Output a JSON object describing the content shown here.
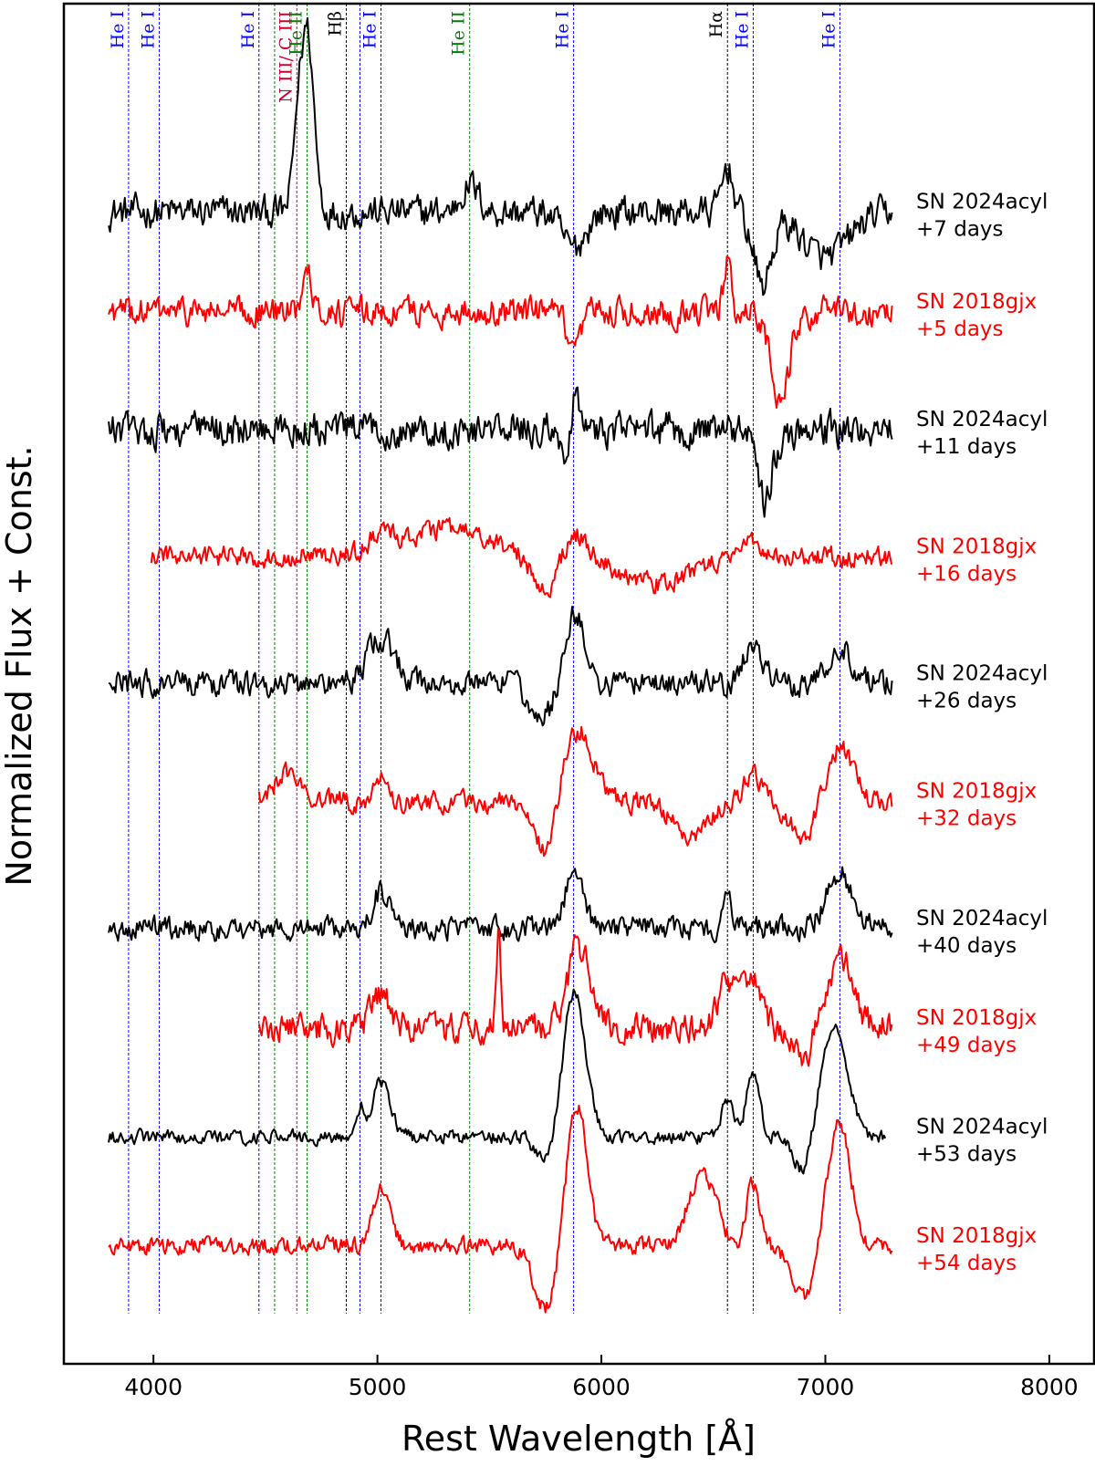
{
  "chart_data": {
    "type": "line",
    "xlabel": "Rest Wavelength [Å]",
    "ylabel": "Normalized Flux + Const.",
    "xlim": [
      3600,
      8200
    ],
    "xticks": [
      4000,
      5000,
      6000,
      7000,
      8000
    ],
    "xtick_labels": [
      "4000",
      "5000",
      "6000",
      "7000",
      "8000"
    ],
    "line_ids": [
      {
        "label": "He I",
        "wavelength": 3889,
        "color": "#0000ff"
      },
      {
        "label": "He I",
        "wavelength": 4026,
        "color": "#0000ff"
      },
      {
        "label": "He I",
        "wavelength": 4471,
        "color": "#0000ff"
      },
      {
        "label": "N III/ C III",
        "wavelength": 4640,
        "color": "#cc0033"
      },
      {
        "label": "He II",
        "wavelength": 4686,
        "color": "#008000"
      },
      {
        "label": "Hβ",
        "wavelength": 4861,
        "color": "#000000"
      },
      {
        "label": "He I",
        "wavelength": 5016,
        "color": "#0000ff"
      },
      {
        "label": "He II",
        "wavelength": 5412,
        "color": "#008000"
      },
      {
        "label": "He I",
        "wavelength": 5876,
        "color": "#0000ff"
      },
      {
        "label": "Hα",
        "wavelength": 6563,
        "color": "#000000"
      },
      {
        "label": "He I",
        "wavelength": 6678,
        "color": "#0000ff"
      },
      {
        "label": "He I",
        "wavelength": 7065,
        "color": "#0000ff"
      }
    ],
    "extra_lines": [
      {
        "wavelength": 4541,
        "color": "#008000",
        "label": ""
      },
      {
        "wavelength": 4922,
        "color": "#0000ff",
        "label": ""
      }
    ],
    "series": [
      {
        "name": "SN 2024acyl",
        "epoch": "+7 days",
        "color": "#000000",
        "range": [
          3800,
          7300
        ],
        "offset": 1.0,
        "noise": 0.028,
        "features": [
          [
            4686,
            0.2,
            30
          ],
          [
            4640,
            0.06,
            20
          ],
          [
            5412,
            0.03,
            40
          ],
          [
            5876,
            -0.04,
            50
          ],
          [
            6563,
            0.05,
            25
          ],
          [
            6720,
            -0.08,
            40
          ],
          [
            7000,
            -0.05,
            100
          ]
        ]
      },
      {
        "name": "SN 2018gjx",
        "epoch": "+5 days",
        "color": "#ff0000",
        "range": [
          3800,
          7300
        ],
        "offset": 0.89,
        "noise": 0.025,
        "features": [
          [
            4686,
            0.06,
            20
          ],
          [
            5876,
            -0.05,
            30
          ],
          [
            6563,
            0.06,
            15
          ],
          [
            6800,
            -0.1,
            40
          ]
        ]
      },
      {
        "name": "SN 2024acyl",
        "epoch": "+11 days",
        "color": "#000000",
        "range": [
          3800,
          7300
        ],
        "offset": 0.76,
        "noise": 0.03,
        "features": [
          [
            5876,
            0.05,
            20
          ],
          [
            5850,
            -0.05,
            20
          ],
          [
            6678,
            0.04,
            20
          ],
          [
            6720,
            -0.08,
            40
          ]
        ]
      },
      {
        "name": "SN 2018gjx",
        "epoch": "+16 days",
        "color": "#ff0000",
        "range": [
          3990,
          7300
        ],
        "offset": 0.62,
        "noise": 0.018,
        "features": [
          [
            5016,
            0.02,
            40
          ],
          [
            5300,
            0.03,
            200
          ],
          [
            5750,
            -0.04,
            60
          ],
          [
            5876,
            0.03,
            50
          ],
          [
            6250,
            -0.03,
            150
          ],
          [
            6678,
            0.02,
            40
          ]
        ]
      },
      {
        "name": "SN 2024acyl",
        "epoch": "+26 days",
        "color": "#000000",
        "range": [
          3800,
          7300
        ],
        "offset": 0.48,
        "noise": 0.022,
        "features": [
          [
            5016,
            0.05,
            60
          ],
          [
            5876,
            0.08,
            50
          ],
          [
            5750,
            -0.04,
            60
          ],
          [
            6678,
            0.05,
            40
          ],
          [
            7065,
            0.04,
            50
          ]
        ]
      },
      {
        "name": "SN 2018gjx",
        "epoch": "+32 days",
        "color": "#ff0000",
        "range": [
          4471,
          7300
        ],
        "offset": 0.35,
        "noise": 0.018,
        "features": [
          [
            4600,
            0.03,
            60
          ],
          [
            5016,
            0.03,
            30
          ],
          [
            5750,
            -0.06,
            40
          ],
          [
            5900,
            0.08,
            60
          ],
          [
            6400,
            -0.04,
            80
          ],
          [
            6678,
            0.03,
            40
          ],
          [
            7065,
            0.06,
            60
          ],
          [
            6900,
            -0.04,
            60
          ]
        ]
      },
      {
        "name": "SN 2024acyl",
        "epoch": "+40 days",
        "color": "#000000",
        "range": [
          3800,
          7300
        ],
        "offset": 0.21,
        "noise": 0.02,
        "features": [
          [
            5016,
            0.04,
            40
          ],
          [
            5876,
            0.06,
            40
          ],
          [
            6563,
            0.03,
            20
          ],
          [
            7065,
            0.06,
            60
          ]
        ]
      },
      {
        "name": "SN 2018gjx",
        "epoch": "+49 days",
        "color": "#ff0000",
        "range": [
          4471,
          7300
        ],
        "offset": 0.1,
        "noise": 0.026,
        "features": [
          [
            5016,
            0.04,
            40
          ],
          [
            5540,
            0.1,
            10
          ],
          [
            5900,
            0.09,
            50
          ],
          [
            6563,
            0.05,
            40
          ],
          [
            6678,
            0.06,
            40
          ],
          [
            7065,
            0.08,
            60
          ],
          [
            6900,
            -0.03,
            60
          ]
        ]
      },
      {
        "name": "SN 2024acyl",
        "epoch": "+53 days",
        "color": "#000000",
        "range": [
          3800,
          7270
        ],
        "offset": -0.02,
        "noise": 0.012,
        "features": [
          [
            5016,
            0.06,
            40
          ],
          [
            4922,
            0.03,
            20
          ],
          [
            5750,
            -0.03,
            40
          ],
          [
            5880,
            0.16,
            50
          ],
          [
            6563,
            0.04,
            25
          ],
          [
            6678,
            0.07,
            30
          ],
          [
            7040,
            0.12,
            60
          ],
          [
            6900,
            -0.04,
            40
          ]
        ]
      },
      {
        "name": "SN 2018gjx",
        "epoch": "+54 days",
        "color": "#ff0000",
        "range": [
          3800,
          7300
        ],
        "offset": -0.14,
        "noise": 0.015,
        "features": [
          [
            5016,
            0.06,
            40
          ],
          [
            5750,
            -0.07,
            50
          ],
          [
            5890,
            0.16,
            45
          ],
          [
            6450,
            0.08,
            60
          ],
          [
            6678,
            0.07,
            30
          ],
          [
            7060,
            0.14,
            50
          ],
          [
            6900,
            -0.06,
            50
          ]
        ]
      }
    ]
  }
}
